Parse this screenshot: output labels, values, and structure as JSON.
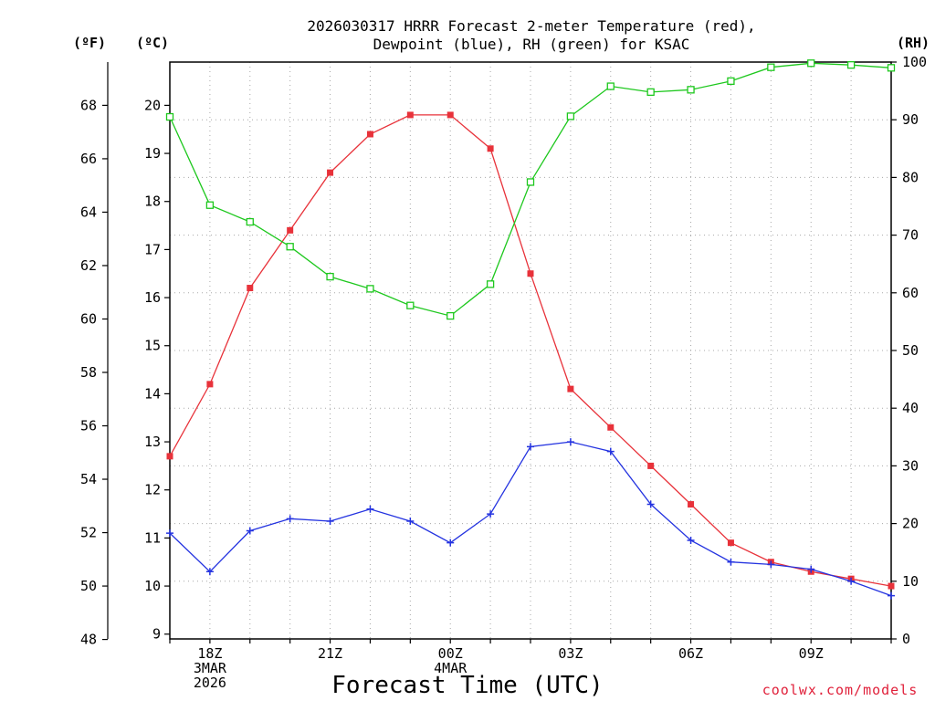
{
  "title_line1": "2026030317 HRRR Forecast 2-meter Temperature (red),",
  "title_line2": "Dewpoint (blue), RH (green) for KSAC",
  "unit_f": "(ºF)",
  "unit_c": "(ºC)",
  "unit_rh": "(RH)",
  "watermark": "coolwx.com/models",
  "chart_data": {
    "type": "line",
    "xlabel": "Forecast Time (UTC)",
    "x_hours": [
      17,
      18,
      19,
      20,
      21,
      22,
      23,
      24,
      25,
      26,
      27,
      28,
      29,
      30,
      31,
      32,
      33,
      34,
      35
    ],
    "x_ticks": [
      {
        "hour": 18,
        "lines": [
          "18Z",
          "3MAR",
          "2026"
        ]
      },
      {
        "hour": 21,
        "lines": [
          "21Z"
        ]
      },
      {
        "hour": 24,
        "lines": [
          "00Z",
          "4MAR"
        ]
      },
      {
        "hour": 27,
        "lines": [
          "03Z"
        ]
      },
      {
        "hour": 30,
        "lines": [
          "06Z"
        ]
      },
      {
        "hour": 33,
        "lines": [
          "09Z"
        ]
      }
    ],
    "xlim": [
      17,
      35
    ],
    "ylim_c": [
      8.9,
      20.9
    ],
    "yticks_c": [
      9,
      10,
      11,
      12,
      13,
      14,
      15,
      16,
      17,
      18,
      19,
      20
    ],
    "yticks_f": [
      48,
      50,
      52,
      54,
      56,
      58,
      60,
      62,
      64,
      66,
      68
    ],
    "ylim_rh": [
      0,
      100
    ],
    "yticks_rh": [
      0,
      10,
      20,
      30,
      40,
      50,
      60,
      70,
      80,
      90,
      100
    ],
    "grid": true,
    "series": [
      {
        "name": "Temperature",
        "axis": "celsius",
        "color": "#e8323a",
        "marker": "filled-square",
        "values": [
          12.7,
          14.2,
          16.2,
          17.4,
          18.6,
          19.4,
          19.8,
          19.8,
          19.1,
          16.5,
          14.1,
          13.3,
          12.5,
          11.7,
          10.9,
          10.5,
          10.3,
          10.15,
          10.0
        ]
      },
      {
        "name": "Dewpoint",
        "axis": "celsius",
        "color": "#2433e0",
        "marker": "plus",
        "values": [
          11.1,
          10.3,
          11.15,
          11.4,
          11.35,
          11.6,
          11.35,
          10.9,
          11.5,
          12.9,
          13.0,
          12.8,
          11.7,
          10.95,
          10.5,
          10.45,
          10.35,
          10.1,
          9.8
        ]
      },
      {
        "name": "RH",
        "axis": "rh",
        "color": "#1ec81e",
        "marker": "open-square",
        "values": [
          90.5,
          75.2,
          72.3,
          68.0,
          62.8,
          60.7,
          57.8,
          56.0,
          61.5,
          79.2,
          90.6,
          95.8,
          94.8,
          95.2,
          96.7,
          99.1,
          99.8,
          99.5,
          99.0
        ]
      }
    ]
  }
}
